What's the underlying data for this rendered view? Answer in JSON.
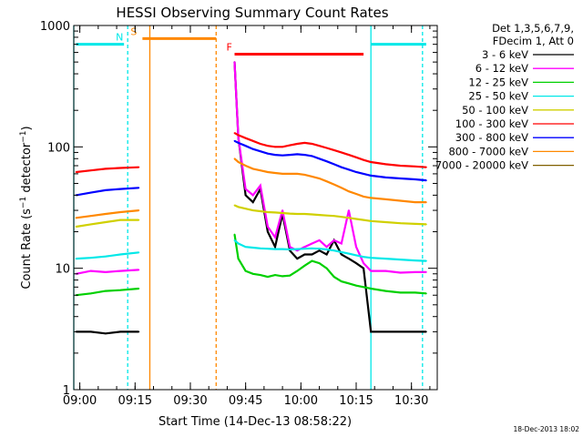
{
  "chart_data": {
    "type": "line",
    "title": "HESSI Observing Summary Count Rates",
    "xlabel": "Start Time (14-Dec-13 08:58:22)",
    "ylabel": "Count Rate (s⁻¹ detector⁻¹)",
    "ylabel_parts": {
      "pre": "Count Rate (s",
      "sup1": "−1",
      "mid": " detector",
      "sup2": "−1",
      "post": ")"
    },
    "xlim": [
      "08:58:22",
      "10:37:00"
    ],
    "ylim": [
      1,
      1000
    ],
    "yscale": "log",
    "x_ticks": [
      "09:00",
      "09:15",
      "09:30",
      "09:45",
      "10:00",
      "10:15",
      "10:30"
    ],
    "y_ticks": [
      "1",
      "10",
      "100",
      "1000"
    ],
    "legend_header": [
      "Det 1,3,5,6,7,9,",
      "FDecim 1, Att 0"
    ],
    "legend_position": "right",
    "timestamp": "18-Dec-2013 18:02",
    "series": [
      {
        "name": "3 - 6 keV",
        "color": "#000000",
        "points": [
          [
            "08:59",
            3.0
          ],
          [
            "09:03",
            3.0
          ],
          [
            "09:07",
            2.9
          ],
          [
            "09:11",
            3.0
          ],
          [
            "09:16",
            3.0
          ],
          [
            "09:42",
            500
          ],
          [
            "09:43",
            120
          ],
          [
            "09:45",
            40
          ],
          [
            "09:47",
            35
          ],
          [
            "09:49",
            45
          ],
          [
            "09:51",
            20
          ],
          [
            "09:53",
            15
          ],
          [
            "09:55",
            28
          ],
          [
            "09:57",
            14
          ],
          [
            "09:59",
            12
          ],
          [
            "10:01",
            13
          ],
          [
            "10:03",
            13
          ],
          [
            "10:05",
            14
          ],
          [
            "10:07",
            13
          ],
          [
            "10:09",
            17
          ],
          [
            "10:11",
            13
          ],
          [
            "10:13",
            12
          ],
          [
            "10:15",
            11
          ],
          [
            "10:17",
            10
          ],
          [
            "10:19",
            3.0
          ],
          [
            "10:23",
            3.0
          ],
          [
            "10:27",
            3.0
          ],
          [
            "10:31",
            3.0
          ],
          [
            "10:34",
            3.0
          ]
        ]
      },
      {
        "name": "6 - 12 keV",
        "color": "#ff00ff",
        "points": [
          [
            "08:59",
            9.0
          ],
          [
            "09:03",
            9.5
          ],
          [
            "09:07",
            9.3
          ],
          [
            "09:11",
            9.5
          ],
          [
            "09:16",
            9.7
          ],
          [
            "09:42",
            500
          ],
          [
            "09:43",
            120
          ],
          [
            "09:45",
            45
          ],
          [
            "09:47",
            40
          ],
          [
            "09:49",
            48
          ],
          [
            "09:51",
            22
          ],
          [
            "09:53",
            18
          ],
          [
            "09:55",
            30
          ],
          [
            "09:57",
            15
          ],
          [
            "09:59",
            14
          ],
          [
            "10:01",
            15
          ],
          [
            "10:03",
            16
          ],
          [
            "10:05",
            17
          ],
          [
            "10:07",
            15
          ],
          [
            "10:09",
            17
          ],
          [
            "10:11",
            16
          ],
          [
            "10:13",
            30
          ],
          [
            "10:15",
            15
          ],
          [
            "10:17",
            11
          ],
          [
            "10:19",
            9.5
          ],
          [
            "10:23",
            9.5
          ],
          [
            "10:27",
            9.2
          ],
          [
            "10:31",
            9.3
          ],
          [
            "10:34",
            9.3
          ]
        ]
      },
      {
        "name": "12 - 25 keV",
        "color": "#00d000",
        "points": [
          [
            "08:59",
            6.0
          ],
          [
            "09:03",
            6.2
          ],
          [
            "09:07",
            6.5
          ],
          [
            "09:11",
            6.6
          ],
          [
            "09:16",
            6.8
          ],
          [
            "09:42",
            19
          ],
          [
            "09:43",
            12
          ],
          [
            "09:45",
            9.5
          ],
          [
            "09:47",
            9.0
          ],
          [
            "09:49",
            8.8
          ],
          [
            "09:51",
            8.5
          ],
          [
            "09:53",
            8.8
          ],
          [
            "09:55",
            8.6
          ],
          [
            "09:57",
            8.7
          ],
          [
            "09:59",
            9.5
          ],
          [
            "10:01",
            10.5
          ],
          [
            "10:03",
            11.5
          ],
          [
            "10:05",
            11.0
          ],
          [
            "10:07",
            10.0
          ],
          [
            "10:09",
            8.5
          ],
          [
            "10:11",
            7.8
          ],
          [
            "10:13",
            7.5
          ],
          [
            "10:15",
            7.2
          ],
          [
            "10:17",
            7.0
          ],
          [
            "10:19",
            6.8
          ],
          [
            "10:23",
            6.5
          ],
          [
            "10:27",
            6.3
          ],
          [
            "10:31",
            6.3
          ],
          [
            "10:34",
            6.2
          ]
        ]
      },
      {
        "name": "25 - 50 keV",
        "color": "#00e8e8",
        "points": [
          [
            "08:59",
            12
          ],
          [
            "09:03",
            12.2
          ],
          [
            "09:07",
            12.5
          ],
          [
            "09:11",
            13
          ],
          [
            "09:16",
            13.5
          ],
          [
            "09:42",
            17
          ],
          [
            "09:43",
            16
          ],
          [
            "09:45",
            15
          ],
          [
            "09:47",
            14.8
          ],
          [
            "09:49",
            14.6
          ],
          [
            "09:51",
            14.5
          ],
          [
            "09:53",
            14.4
          ],
          [
            "09:55",
            14.4
          ],
          [
            "09:57",
            14.3
          ],
          [
            "09:59",
            14.4
          ],
          [
            "10:01",
            14.5
          ],
          [
            "10:03",
            14.6
          ],
          [
            "10:05",
            14.5
          ],
          [
            "10:07",
            14.3
          ],
          [
            "10:09",
            14.0
          ],
          [
            "10:11",
            13.6
          ],
          [
            "10:13",
            13.2
          ],
          [
            "10:15",
            12.8
          ],
          [
            "10:17",
            12.4
          ],
          [
            "10:19",
            12.2
          ],
          [
            "10:23",
            12.0
          ],
          [
            "10:27",
            11.8
          ],
          [
            "10:31",
            11.6
          ],
          [
            "10:34",
            11.5
          ]
        ]
      },
      {
        "name": "50 - 100 keV",
        "color": "#d0d000",
        "points": [
          [
            "08:59",
            22
          ],
          [
            "09:03",
            23
          ],
          [
            "09:07",
            24
          ],
          [
            "09:11",
            25
          ],
          [
            "09:16",
            25
          ],
          [
            "09:42",
            33
          ],
          [
            "09:43",
            32
          ],
          [
            "09:45",
            31
          ],
          [
            "09:47",
            30
          ],
          [
            "09:49",
            29.5
          ],
          [
            "09:51",
            29
          ],
          [
            "09:53",
            28.8
          ],
          [
            "09:55",
            28.5
          ],
          [
            "09:57",
            28.2
          ],
          [
            "09:59",
            28.0
          ],
          [
            "10:01",
            28.0
          ],
          [
            "10:03",
            27.8
          ],
          [
            "10:05",
            27.5
          ],
          [
            "10:07",
            27.2
          ],
          [
            "10:09",
            27.0
          ],
          [
            "10:11",
            26.5
          ],
          [
            "10:13",
            26.0
          ],
          [
            "10:15",
            25.5
          ],
          [
            "10:17",
            25.0
          ],
          [
            "10:19",
            24.5
          ],
          [
            "10:23",
            24.0
          ],
          [
            "10:27",
            23.5
          ],
          [
            "10:31",
            23.2
          ],
          [
            "10:34",
            23.0
          ]
        ]
      },
      {
        "name": "100 - 300 keV",
        "color": "#ff0000",
        "points": [
          [
            "08:59",
            62
          ],
          [
            "09:03",
            64
          ],
          [
            "09:07",
            66
          ],
          [
            "09:11",
            67
          ],
          [
            "09:16",
            68
          ],
          [
            "09:42",
            130
          ],
          [
            "09:43",
            125
          ],
          [
            "09:45",
            118
          ],
          [
            "09:47",
            112
          ],
          [
            "09:49",
            106
          ],
          [
            "09:51",
            102
          ],
          [
            "09:53",
            100
          ],
          [
            "09:55",
            100
          ],
          [
            "09:57",
            103
          ],
          [
            "09:59",
            106
          ],
          [
            "10:01",
            108
          ],
          [
            "10:03",
            106
          ],
          [
            "10:05",
            102
          ],
          [
            "10:07",
            98
          ],
          [
            "10:09",
            94
          ],
          [
            "10:11",
            90
          ],
          [
            "10:13",
            86
          ],
          [
            "10:15",
            82
          ],
          [
            "10:17",
            78
          ],
          [
            "10:19",
            75
          ],
          [
            "10:23",
            72
          ],
          [
            "10:27",
            70
          ],
          [
            "10:31",
            69
          ],
          [
            "10:34",
            68
          ]
        ]
      },
      {
        "name": "300 - 800 keV",
        "color": "#0000ff",
        "points": [
          [
            "08:59",
            40
          ],
          [
            "09:03",
            42
          ],
          [
            "09:07",
            44
          ],
          [
            "09:11",
            45
          ],
          [
            "09:16",
            46
          ],
          [
            "09:42",
            112
          ],
          [
            "09:43",
            108
          ],
          [
            "09:45",
            102
          ],
          [
            "09:47",
            96
          ],
          [
            "09:49",
            92
          ],
          [
            "09:51",
            88
          ],
          [
            "09:53",
            86
          ],
          [
            "09:55",
            85
          ],
          [
            "09:57",
            86
          ],
          [
            "09:59",
            87
          ],
          [
            "10:01",
            86
          ],
          [
            "10:03",
            84
          ],
          [
            "10:05",
            80
          ],
          [
            "10:07",
            76
          ],
          [
            "10:09",
            72
          ],
          [
            "10:11",
            68
          ],
          [
            "10:13",
            65
          ],
          [
            "10:15",
            62
          ],
          [
            "10:17",
            60
          ],
          [
            "10:19",
            58
          ],
          [
            "10:23",
            56
          ],
          [
            "10:27",
            55
          ],
          [
            "10:31",
            54
          ],
          [
            "10:34",
            53
          ]
        ]
      },
      {
        "name": "800 - 7000 keV",
        "color": "#ff8800",
        "points": [
          [
            "08:59",
            26
          ],
          [
            "09:03",
            27
          ],
          [
            "09:07",
            28
          ],
          [
            "09:11",
            29
          ],
          [
            "09:16",
            30
          ],
          [
            "09:42",
            80
          ],
          [
            "09:43",
            75
          ],
          [
            "09:45",
            70
          ],
          [
            "09:47",
            66
          ],
          [
            "09:49",
            64
          ],
          [
            "09:51",
            62
          ],
          [
            "09:53",
            61
          ],
          [
            "09:55",
            60
          ],
          [
            "09:57",
            60
          ],
          [
            "09:59",
            60
          ],
          [
            "10:01",
            59
          ],
          [
            "10:03",
            57
          ],
          [
            "10:05",
            55
          ],
          [
            "10:07",
            52
          ],
          [
            "10:09",
            49
          ],
          [
            "10:11",
            46
          ],
          [
            "10:13",
            43
          ],
          [
            "10:15",
            41
          ],
          [
            "10:17",
            39
          ],
          [
            "10:19",
            38
          ],
          [
            "10:23",
            37
          ],
          [
            "10:27",
            36
          ],
          [
            "10:31",
            35
          ],
          [
            "10:34",
            35
          ]
        ]
      },
      {
        "name": "7000 - 20000 keV",
        "color": "#806000",
        "points": []
      }
    ],
    "status_bars": [
      {
        "flag": "N",
        "color": "#00e8e8",
        "y": 700,
        "segments": [
          [
            "08:59",
            "09:12"
          ],
          [
            "10:19",
            "10:34"
          ]
        ],
        "label_at": "09:12"
      },
      {
        "flag": "S",
        "color": "#ff8800",
        "y": 780,
        "segments": [
          [
            "09:17",
            "09:37"
          ]
        ],
        "label_at": "09:17"
      },
      {
        "flag": "F",
        "color": "#ff0000",
        "y": 580,
        "segments": [
          [
            "09:42",
            "10:17"
          ]
        ],
        "label_at": "09:42"
      }
    ],
    "vertical_markers": [
      {
        "flag": "N",
        "color": "#00e8e8",
        "style": "solid",
        "times": [
          "08:58:22",
          "10:19"
        ]
      },
      {
        "flag": "N",
        "color": "#00e8e8",
        "style": "dashed",
        "times": [
          "09:13",
          "10:33"
        ]
      },
      {
        "flag": "S",
        "color": "#ff8800",
        "style": "solid",
        "times": [
          "09:19"
        ]
      },
      {
        "flag": "S",
        "color": "#ff8800",
        "style": "dashed",
        "times": [
          "09:37"
        ]
      }
    ]
  }
}
